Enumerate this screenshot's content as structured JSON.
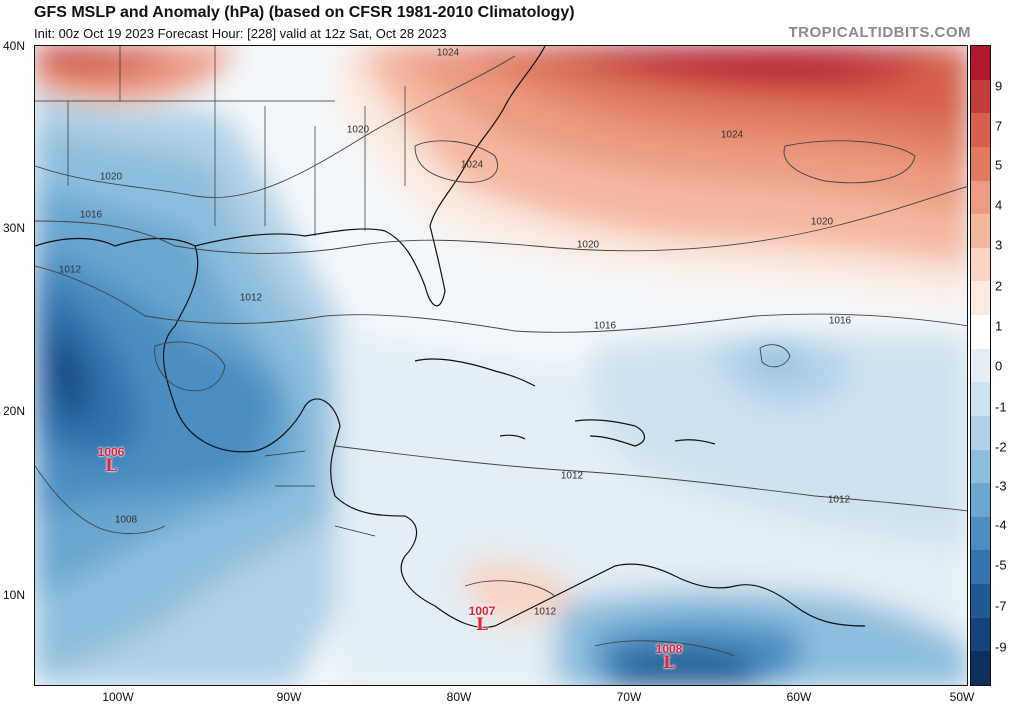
{
  "header": {
    "title": "GFS MSLP and Anomaly (hPa) (based on CFSR 1981-2010 Climatology)",
    "subtitle": "Init: 00z Oct 19 2023   Forecast Hour: [228]   valid at 12z Sat, Oct 28 2023",
    "brand": "TROPICALTIDBITS.COM"
  },
  "axes": {
    "lat_labels": [
      "40N",
      "30N",
      "20N",
      "10N"
    ],
    "lon_labels": [
      "100W",
      "90W",
      "80W",
      "70W",
      "60W",
      "50W"
    ]
  },
  "colorbar": {
    "labels": [
      "9",
      "7",
      "5",
      "4",
      "3",
      "2",
      "1",
      "0",
      "-1",
      "-2",
      "-3",
      "-4",
      "-5",
      "-7",
      "-9"
    ],
    "colors": [
      "#b2182b",
      "#c43c3c",
      "#d6604d",
      "#e07b62",
      "#ec9a82",
      "#f4b89f",
      "#f9d4c2",
      "#fbeae0",
      "#ffffff",
      "#e3eef6",
      "#cde2f0",
      "#b0d1e7",
      "#8ebedd",
      "#6aa6cf",
      "#4b8dc1",
      "#3372ae",
      "#225a94",
      "#15427a",
      "#0c2f5e"
    ]
  },
  "isobar_labels": [
    "1024",
    "1024",
    "1024",
    "1020",
    "1020",
    "1020",
    "1020",
    "1016",
    "1016",
    "1016",
    "1012",
    "1012",
    "1012",
    "1012",
    "1008",
    "1012"
  ],
  "lows": [
    {
      "pressure": "1006",
      "symbol": "L"
    },
    {
      "pressure": "1007",
      "symbol": "L"
    },
    {
      "pressure": "1008",
      "symbol": "L"
    }
  ]
}
